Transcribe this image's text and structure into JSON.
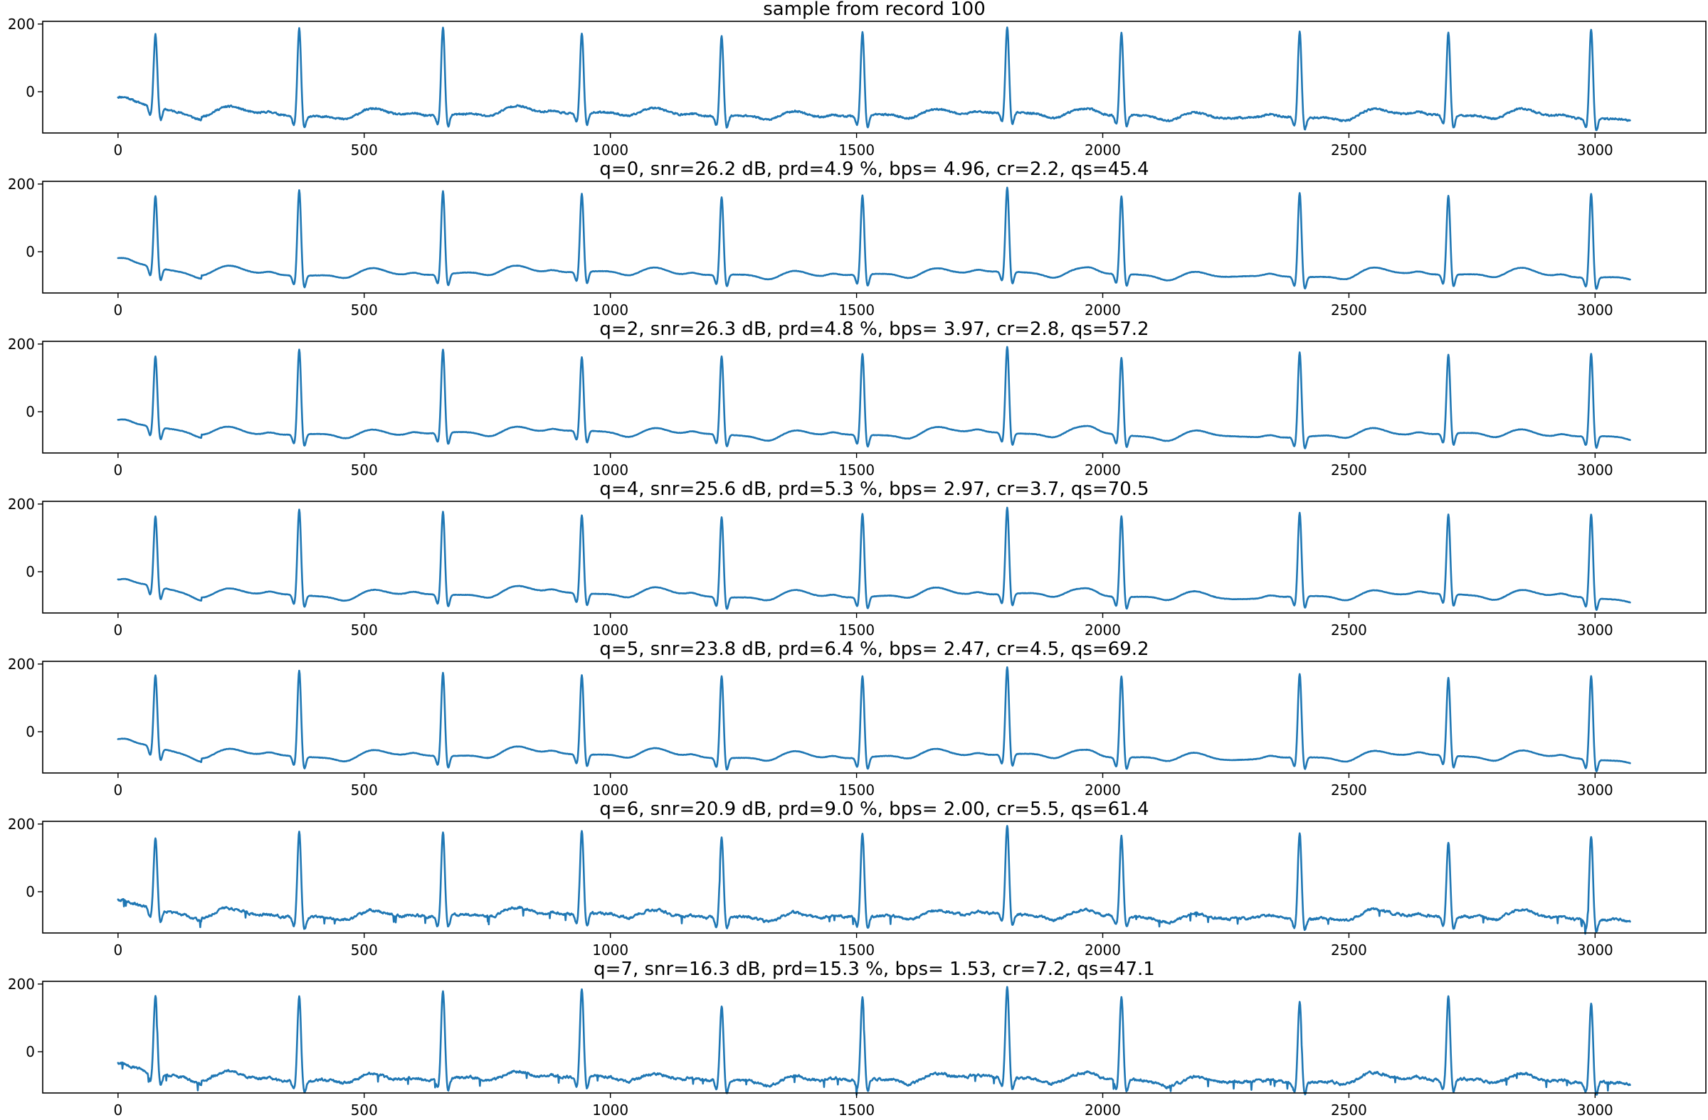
{
  "chart_data": {
    "type": "line",
    "grid": false,
    "line_color": "#1f77b4",
    "panels": [
      {
        "title": "sample from record 100",
        "seed": 11,
        "variant": "raw",
        "peaks": [
          170,
          188,
          190,
          172,
          165,
          177,
          190,
          175,
          178,
          178,
          185
        ],
        "baseline_start": -28,
        "baseline_end": -75
      },
      {
        "title": "q=0, snr=26.2 dB, prd=4.9 %, bps= 4.96, cr=2.2, qs=45.4",
        "seed": 23,
        "variant": "smooth",
        "peaks": [
          166,
          183,
          180,
          172,
          162,
          167,
          190,
          165,
          175,
          167,
          172
        ],
        "baseline_start": -30,
        "baseline_end": -72
      },
      {
        "title": "q=2, snr=26.3 dB, prd=4.8 %, bps= 3.97, cr=2.8, qs=57.2",
        "seed": 37,
        "variant": "smooth",
        "peaks": [
          165,
          185,
          185,
          162,
          165,
          172,
          193,
          160,
          176,
          170,
          172
        ],
        "baseline_start": -30,
        "baseline_end": -72
      },
      {
        "title": "q=4, snr=25.6 dB, prd=5.3 %, bps= 2.97, cr=3.7, qs=70.5",
        "seed": 41,
        "variant": "smooth",
        "peaks": [
          165,
          185,
          178,
          168,
          162,
          172,
          190,
          165,
          175,
          170,
          170
        ],
        "baseline_start": -32,
        "baseline_end": -75
      },
      {
        "title": "q=5, snr=23.8 dB, prd=6.4 %, bps= 2.47, cr=4.5, qs=69.2",
        "seed": 53,
        "variant": "smooth",
        "peaks": [
          168,
          182,
          175,
          168,
          165,
          165,
          192,
          165,
          172,
          160,
          165
        ],
        "baseline_start": -32,
        "baseline_end": -78
      },
      {
        "title": "q=6, snr=20.9 dB, prd=9.0 %, bps= 2.00, cr=5.5, qs=61.4",
        "seed": 67,
        "variant": "noisy",
        "peaks": [
          162,
          178,
          175,
          180,
          162,
          172,
          198,
          165,
          175,
          146,
          165
        ],
        "baseline_start": -35,
        "baseline_end": -78
      },
      {
        "title": "q=7, snr=16.3 dB, prd=15.3 %, bps= 1.53, cr=7.2, qs=47.1",
        "seed": 79,
        "variant": "noisy",
        "peaks": [
          168,
          162,
          182,
          188,
          138,
          165,
          195,
          165,
          148,
          165,
          142
        ],
        "baseline_start": -45,
        "baseline_end": -88
      }
    ],
    "r_peak_samples": [
      76,
      368,
      660,
      942,
      1226,
      1512,
      1806,
      2038,
      2400,
      2702,
      2992
    ],
    "n_samples": 3072,
    "x_ticks": [
      0,
      500,
      1000,
      1500,
      2000,
      2500,
      3000
    ],
    "x_tick_labels": [
      "0",
      "500",
      "1000",
      "1500",
      "2000",
      "2500",
      "3000"
    ],
    "y_ticks": [
      0,
      200
    ],
    "y_tick_labels": [
      "0",
      "200"
    ],
    "xlim": [
      -153,
      3225
    ],
    "ylim": [
      -122,
      208
    ]
  }
}
